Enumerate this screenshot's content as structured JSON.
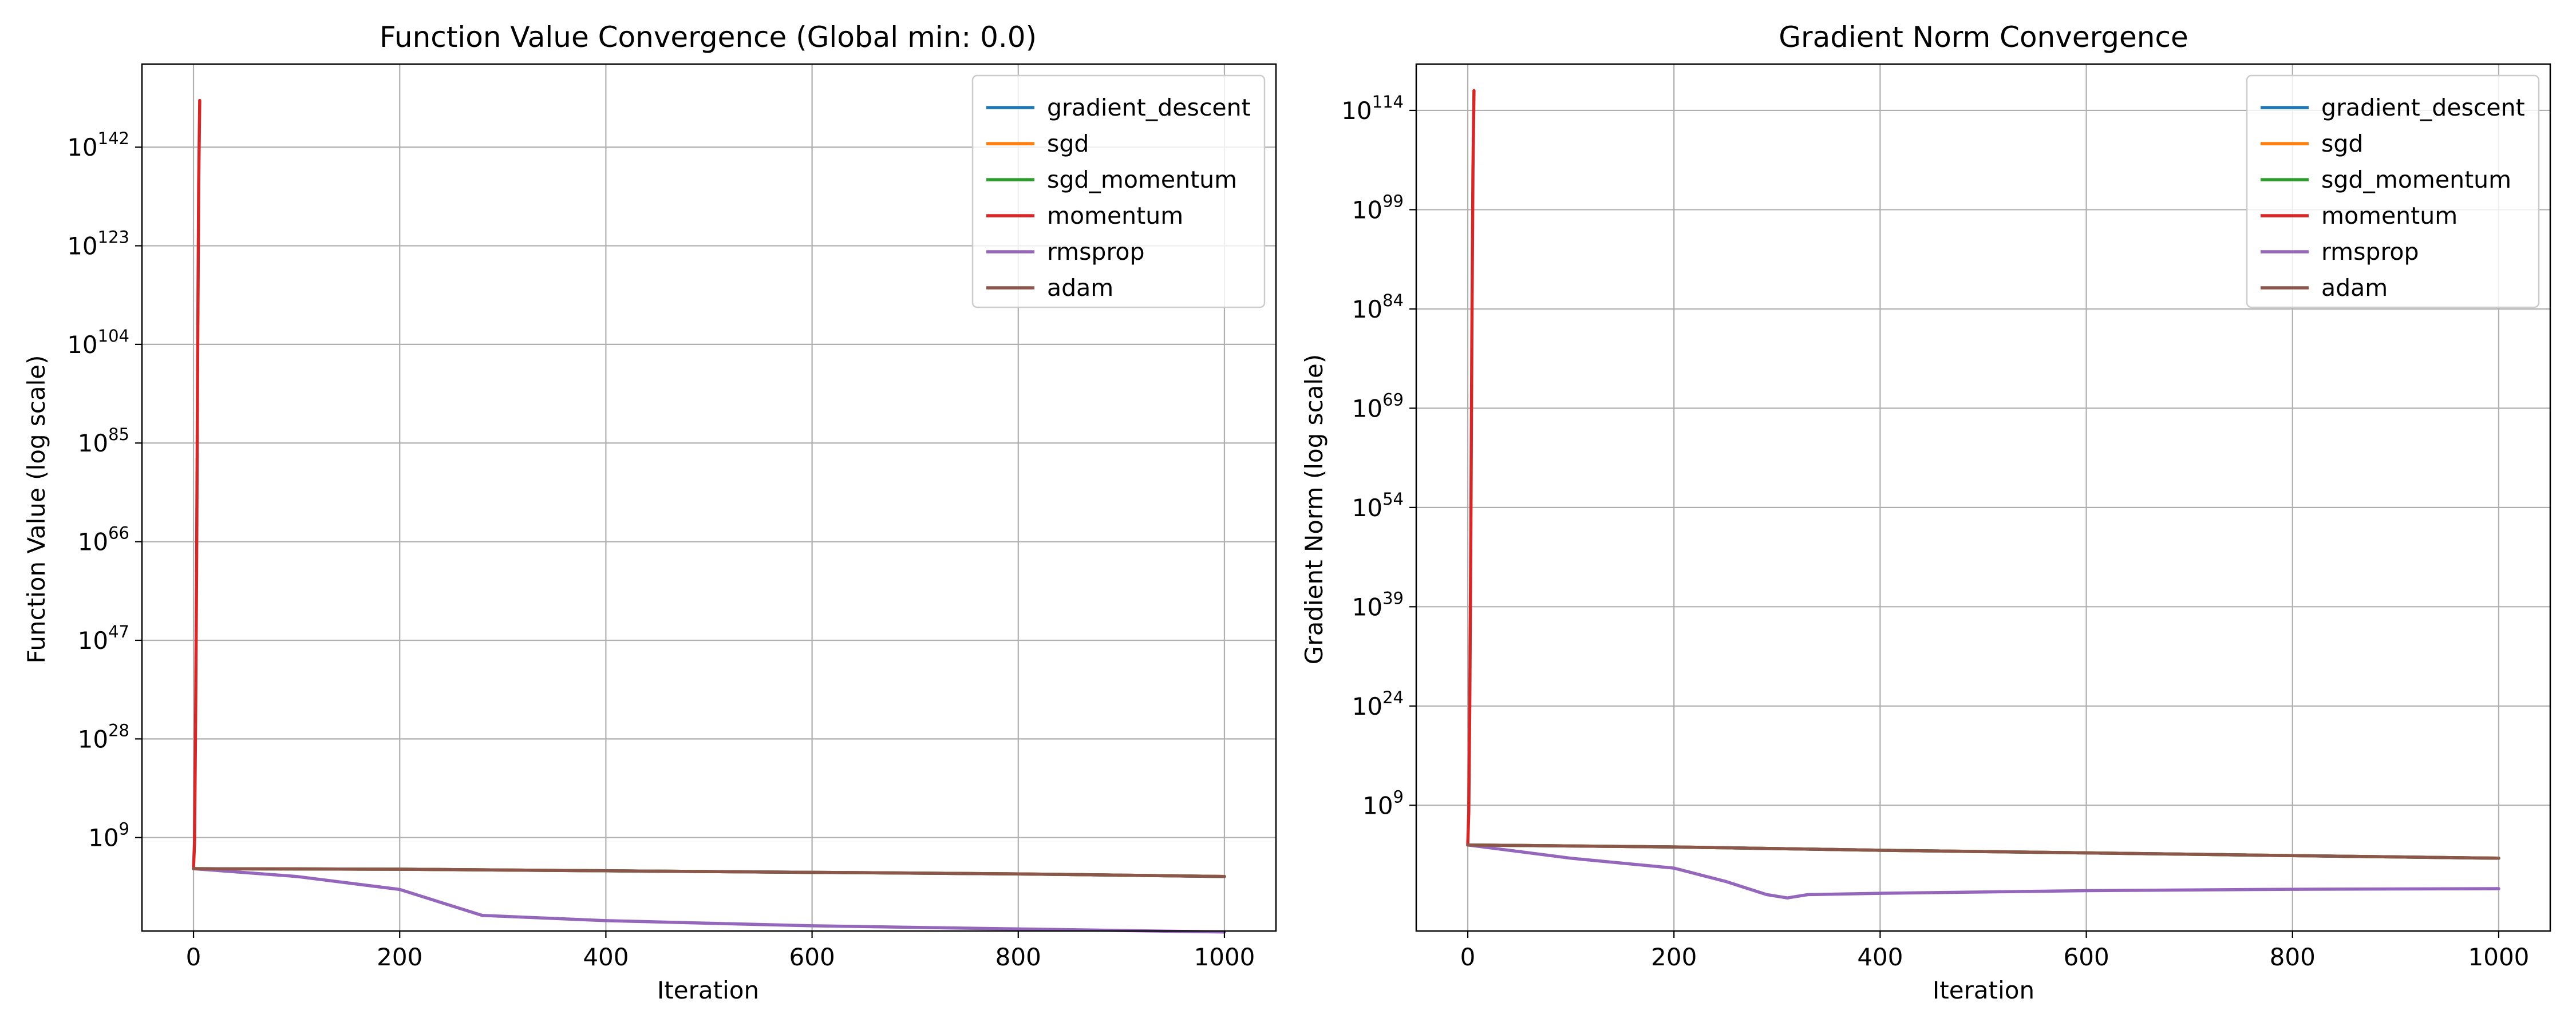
{
  "figure": {
    "colors": {
      "gradient_descent": "#1f77b4",
      "sgd": "#ff7f0e",
      "sgd_momentum": "#2ca02c",
      "momentum": "#d62728",
      "rmsprop": "#9467bd",
      "adam": "#8c564b"
    }
  },
  "chart_data": [
    {
      "type": "line",
      "title": "Function Value Convergence (Global min: 0.0)",
      "xlabel": "Iteration",
      "ylabel": "Function Value (log scale)",
      "yscale": "log",
      "grid": true,
      "legend_position": "upper right",
      "xlim": [
        -50,
        1050
      ],
      "ylim_exp": [
        -9,
        158
      ],
      "x_ticks": [
        0,
        200,
        400,
        600,
        800,
        1000
      ],
      "x_tick_labels": [
        "0",
        "200",
        "400",
        "600",
        "800",
        "1000"
      ],
      "y_ticks_exp": [
        9,
        28,
        47,
        66,
        85,
        104,
        123,
        142
      ],
      "y_tick_base": "10",
      "y_tick_exponents": [
        "9",
        "28",
        "47",
        "66",
        "85",
        "104",
        "123",
        "142"
      ],
      "series": [
        {
          "name": "gradient_descent",
          "color": "#1f77b4",
          "x": [
            0,
            200,
            400,
            600,
            800,
            1000
          ],
          "y_exp": [
            3,
            2.9,
            2.6,
            2.3,
            2.0,
            1.5
          ]
        },
        {
          "name": "sgd",
          "color": "#ff7f0e",
          "x": [
            0,
            200,
            400,
            600,
            800,
            1000
          ],
          "y_exp": [
            3,
            2.9,
            2.6,
            2.3,
            2.0,
            1.5
          ]
        },
        {
          "name": "sgd_momentum",
          "color": "#2ca02c",
          "x": [
            0,
            200,
            400,
            600,
            800,
            1000
          ],
          "y_exp": [
            3,
            2.9,
            2.6,
            2.3,
            2.0,
            1.5
          ]
        },
        {
          "name": "momentum",
          "color": "#d62728",
          "x": [
            0,
            1,
            2,
            3,
            4,
            5,
            6
          ],
          "y_exp": [
            3,
            8,
            30,
            60,
            100,
            135,
            151
          ]
        },
        {
          "name": "rmsprop",
          "color": "#9467bd",
          "x": [
            0,
            100,
            200,
            240,
            280,
            400,
            600,
            800,
            1000
          ],
          "y_exp": [
            3,
            1.5,
            -1,
            -3.5,
            -6,
            -7,
            -8,
            -8.6,
            -9.2
          ]
        },
        {
          "name": "adam",
          "color": "#8c564b",
          "x": [
            0,
            200,
            400,
            600,
            800,
            1000
          ],
          "y_exp": [
            3,
            2.9,
            2.6,
            2.3,
            2.0,
            1.5
          ]
        }
      ]
    },
    {
      "type": "line",
      "title": "Gradient Norm Convergence",
      "xlabel": "Iteration",
      "ylabel": "Gradient Norm (log scale)",
      "yscale": "log",
      "grid": true,
      "legend_position": "upper right",
      "xlim": [
        -50,
        1050
      ],
      "ylim_exp": [
        -10,
        121
      ],
      "x_ticks": [
        0,
        200,
        400,
        600,
        800,
        1000
      ],
      "x_tick_labels": [
        "0",
        "200",
        "400",
        "600",
        "800",
        "1000"
      ],
      "y_ticks_exp": [
        9,
        24,
        39,
        54,
        69,
        84,
        99,
        114
      ],
      "y_tick_base": "10",
      "y_tick_exponents": [
        "9",
        "24",
        "39",
        "54",
        "69",
        "84",
        "99",
        "114"
      ],
      "series": [
        {
          "name": "gradient_descent",
          "color": "#1f77b4",
          "x": [
            0,
            200,
            400,
            600,
            800,
            1000
          ],
          "y_exp": [
            3,
            2.7,
            2.2,
            1.8,
            1.4,
            1.0
          ]
        },
        {
          "name": "sgd",
          "color": "#ff7f0e",
          "x": [
            0,
            200,
            400,
            600,
            800,
            1000
          ],
          "y_exp": [
            3,
            2.7,
            2.2,
            1.8,
            1.4,
            1.0
          ]
        },
        {
          "name": "sgd_momentum",
          "color": "#2ca02c",
          "x": [
            0,
            200,
            400,
            600,
            800,
            1000
          ],
          "y_exp": [
            3,
            2.7,
            2.2,
            1.8,
            1.4,
            1.0
          ]
        },
        {
          "name": "momentum",
          "color": "#d62728",
          "x": [
            0,
            1,
            2,
            3,
            4,
            5,
            6
          ],
          "y_exp": [
            3,
            8,
            25,
            50,
            80,
            105,
            117
          ]
        },
        {
          "name": "rmsprop",
          "color": "#9467bd",
          "x": [
            0,
            100,
            200,
            250,
            290,
            310,
            330,
            400,
            600,
            800,
            1000
          ],
          "y_exp": [
            3,
            1,
            -0.5,
            -2.5,
            -4.5,
            -5,
            -4.5,
            -4.3,
            -3.9,
            -3.7,
            -3.6
          ]
        },
        {
          "name": "adam",
          "color": "#8c564b",
          "x": [
            0,
            200,
            400,
            600,
            800,
            1000
          ],
          "y_exp": [
            3,
            2.7,
            2.2,
            1.8,
            1.4,
            1.0
          ]
        }
      ]
    }
  ]
}
